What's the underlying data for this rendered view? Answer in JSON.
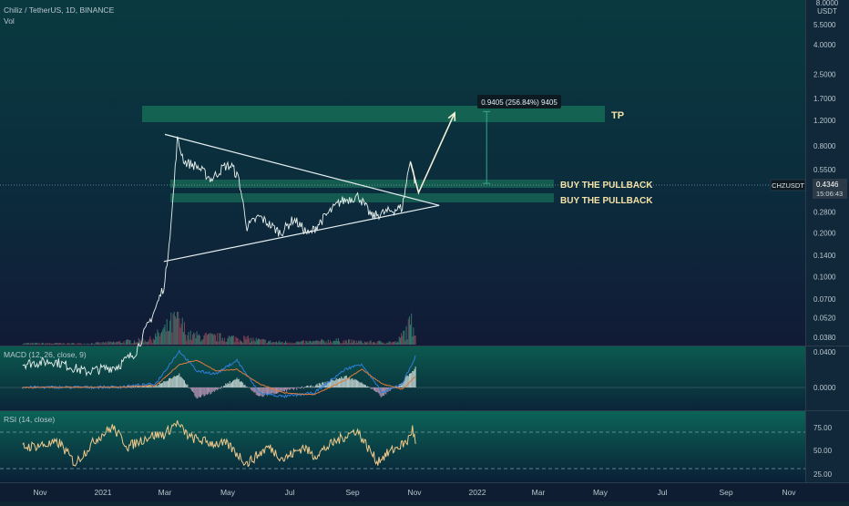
{
  "header": {
    "symbol_line": "Chiliz / TetherUS, 1D, BINANCE",
    "vol_label": "Vol"
  },
  "currency": {
    "top_value": "8.0000",
    "unit": "USDT"
  },
  "price_axis": {
    "ticks": [
      "5.5000",
      "4.0000",
      "2.5000",
      "1.7000",
      "1.2000",
      "0.8000",
      "0.5500",
      "0.4000",
      "0.2800",
      "0.2000",
      "0.1400",
      "0.1000",
      "0.0700",
      "0.0520",
      "0.0380"
    ]
  },
  "ticker_tag": {
    "symbol": "CHZUSDT",
    "price": "0.4346",
    "countdown": "15:06:43"
  },
  "annotations": {
    "tp": "TP",
    "pullback1": "BUY THE PULLBACK",
    "pullback2": "BUY THE PULLBACK",
    "measure": "0.9405 (256.84%) 9405"
  },
  "macd": {
    "label": "MACD (12, 26, close, 9)",
    "ticks": [
      "0.0400",
      "0.0000"
    ]
  },
  "rsi": {
    "label": "RSI (14, close)",
    "ticks": [
      "75.00",
      "50.00",
      "25.00"
    ]
  },
  "time_axis": {
    "labels": [
      "Nov",
      "2021",
      "Mar",
      "May",
      "Jul",
      "Sep",
      "Nov",
      "2022",
      "Mar",
      "May",
      "Jul",
      "Sep",
      "Nov"
    ]
  },
  "chart_data": {
    "type": "line",
    "title": "Chiliz / TetherUS, 1D, BINANCE",
    "scale": "log",
    "ylim": [
      0.038,
      8.0
    ],
    "x_range": [
      "2020-11",
      "2022-11"
    ],
    "grid": false,
    "price_path": [
      {
        "date": "2020-10-15",
        "close": 0.025
      },
      {
        "date": "2020-11-15",
        "close": 0.026
      },
      {
        "date": "2020-12-15",
        "close": 0.022
      },
      {
        "date": "2021-01-15",
        "close": 0.024
      },
      {
        "date": "2021-02-01",
        "close": 0.03
      },
      {
        "date": "2021-02-20",
        "close": 0.06
      },
      {
        "date": "2021-03-01",
        "close": 0.09
      },
      {
        "date": "2021-03-08",
        "close": 0.28
      },
      {
        "date": "2021-03-13",
        "close": 0.88
      },
      {
        "date": "2021-03-20",
        "close": 0.62
      },
      {
        "date": "2021-04-01",
        "close": 0.58
      },
      {
        "date": "2021-04-15",
        "close": 0.47
      },
      {
        "date": "2021-04-28",
        "close": 0.58
      },
      {
        "date": "2021-05-05",
        "close": 0.58
      },
      {
        "date": "2021-05-12",
        "close": 0.47
      },
      {
        "date": "2021-05-20",
        "close": 0.22
      },
      {
        "date": "2021-06-01",
        "close": 0.26
      },
      {
        "date": "2021-06-22",
        "close": 0.2
      },
      {
        "date": "2021-07-05",
        "close": 0.25
      },
      {
        "date": "2021-07-20",
        "close": 0.195
      },
      {
        "date": "2021-08-05",
        "close": 0.26
      },
      {
        "date": "2021-08-20",
        "close": 0.33
      },
      {
        "date": "2021-09-07",
        "close": 0.36
      },
      {
        "date": "2021-09-20",
        "close": 0.26
      },
      {
        "date": "2021-10-05",
        "close": 0.28
      },
      {
        "date": "2021-10-20",
        "close": 0.3
      },
      {
        "date": "2021-10-28",
        "close": 0.66
      },
      {
        "date": "2021-11-02",
        "close": 0.4346
      }
    ],
    "volume_shape": [
      {
        "date": "2020-11-15",
        "v": 0.05
      },
      {
        "date": "2020-12-15",
        "v": 0.04
      },
      {
        "date": "2021-01-15",
        "v": 0.1
      },
      {
        "date": "2021-02-15",
        "v": 0.2
      },
      {
        "date": "2021-03-01",
        "v": 0.55
      },
      {
        "date": "2021-03-12",
        "v": 1.0
      },
      {
        "date": "2021-03-25",
        "v": 0.35
      },
      {
        "date": "2021-04-15",
        "v": 0.3
      },
      {
        "date": "2021-05-15",
        "v": 0.25
      },
      {
        "date": "2021-06-15",
        "v": 0.1
      },
      {
        "date": "2021-07-15",
        "v": 0.1
      },
      {
        "date": "2021-08-15",
        "v": 0.16
      },
      {
        "date": "2021-09-15",
        "v": 0.1
      },
      {
        "date": "2021-10-15",
        "v": 0.1
      },
      {
        "date": "2021-10-30",
        "v": 0.85
      }
    ],
    "macd_shape": [
      {
        "date": "2020-11-01",
        "macd": 0.0002,
        "signal": 0.0001
      },
      {
        "date": "2021-01-15",
        "macd": 0.0005,
        "signal": 0.0004
      },
      {
        "date": "2021-02-20",
        "macd": 0.004,
        "signal": 0.002
      },
      {
        "date": "2021-03-15",
        "macd": 0.04,
        "signal": 0.025
      },
      {
        "date": "2021-04-01",
        "macd": 0.018,
        "signal": 0.03
      },
      {
        "date": "2021-04-20",
        "macd": 0.015,
        "signal": 0.018
      },
      {
        "date": "2021-05-10",
        "macd": 0.03,
        "signal": 0.02
      },
      {
        "date": "2021-06-01",
        "macd": -0.006,
        "signal": 0.004
      },
      {
        "date": "2021-06-25",
        "macd": -0.01,
        "signal": -0.006
      },
      {
        "date": "2021-07-25",
        "macd": -0.006,
        "signal": -0.008
      },
      {
        "date": "2021-08-25",
        "macd": 0.02,
        "signal": 0.008
      },
      {
        "date": "2021-09-10",
        "macd": 0.026,
        "signal": 0.02
      },
      {
        "date": "2021-09-30",
        "macd": -0.006,
        "signal": 0.004
      },
      {
        "date": "2021-10-20",
        "macd": 0.004,
        "signal": -0.002
      },
      {
        "date": "2021-11-02",
        "macd": 0.034,
        "signal": 0.012
      }
    ],
    "rsi_shape": [
      {
        "date": "2020-10-20",
        "rsi": 55
      },
      {
        "date": "2020-11-20",
        "rsi": 60
      },
      {
        "date": "2020-12-05",
        "rsi": 32
      },
      {
        "date": "2020-12-25",
        "rsi": 65
      },
      {
        "date": "2021-01-10",
        "rsi": 82
      },
      {
        "date": "2021-01-25",
        "rsi": 55
      },
      {
        "date": "2021-02-15",
        "rsi": 70
      },
      {
        "date": "2021-03-01",
        "rsi": 72
      },
      {
        "date": "2021-03-12",
        "rsi": 88
      },
      {
        "date": "2021-03-25",
        "rsi": 68
      },
      {
        "date": "2021-04-15",
        "rsi": 60
      },
      {
        "date": "2021-05-01",
        "rsi": 58
      },
      {
        "date": "2021-05-20",
        "rsi": 32
      },
      {
        "date": "2021-06-10",
        "rsi": 55
      },
      {
        "date": "2021-06-25",
        "rsi": 38
      },
      {
        "date": "2021-07-15",
        "rsi": 55
      },
      {
        "date": "2021-07-25",
        "rsi": 42
      },
      {
        "date": "2021-08-15",
        "rsi": 62
      },
      {
        "date": "2021-09-05",
        "rsi": 78
      },
      {
        "date": "2021-09-25",
        "rsi": 35
      },
      {
        "date": "2021-10-10",
        "rsi": 50
      },
      {
        "date": "2021-10-25",
        "rsi": 62
      },
      {
        "date": "2021-10-30",
        "rsi": 80
      },
      {
        "date": "2021-11-02",
        "rsi": 60
      }
    ],
    "trendlines": [
      {
        "from": {
          "date": "2021-03-01",
          "value": 0.96
        },
        "to": {
          "date": "2021-11-25",
          "value": 0.31
        }
      },
      {
        "from": {
          "date": "2021-02-28",
          "value": 0.127
        },
        "to": {
          "date": "2021-11-25",
          "value": 0.31
        }
      }
    ],
    "zones": [
      {
        "label": "TP",
        "from": 1.24,
        "to": 1.5
      },
      {
        "label": "BUY THE PULLBACK",
        "from": 0.44,
        "to": 0.5
      },
      {
        "label": "BUY THE PULLBACK",
        "from": 0.33,
        "to": 0.375
      }
    ],
    "projection": [
      {
        "date": "2021-10-28",
        "value": 0.62
      },
      {
        "date": "2021-11-05",
        "value": 0.38
      },
      {
        "date": "2021-12-10",
        "value": 1.35
      }
    ],
    "measure_range": {
      "date": "2022-01-10",
      "from": 0.44,
      "to": 1.38
    }
  }
}
